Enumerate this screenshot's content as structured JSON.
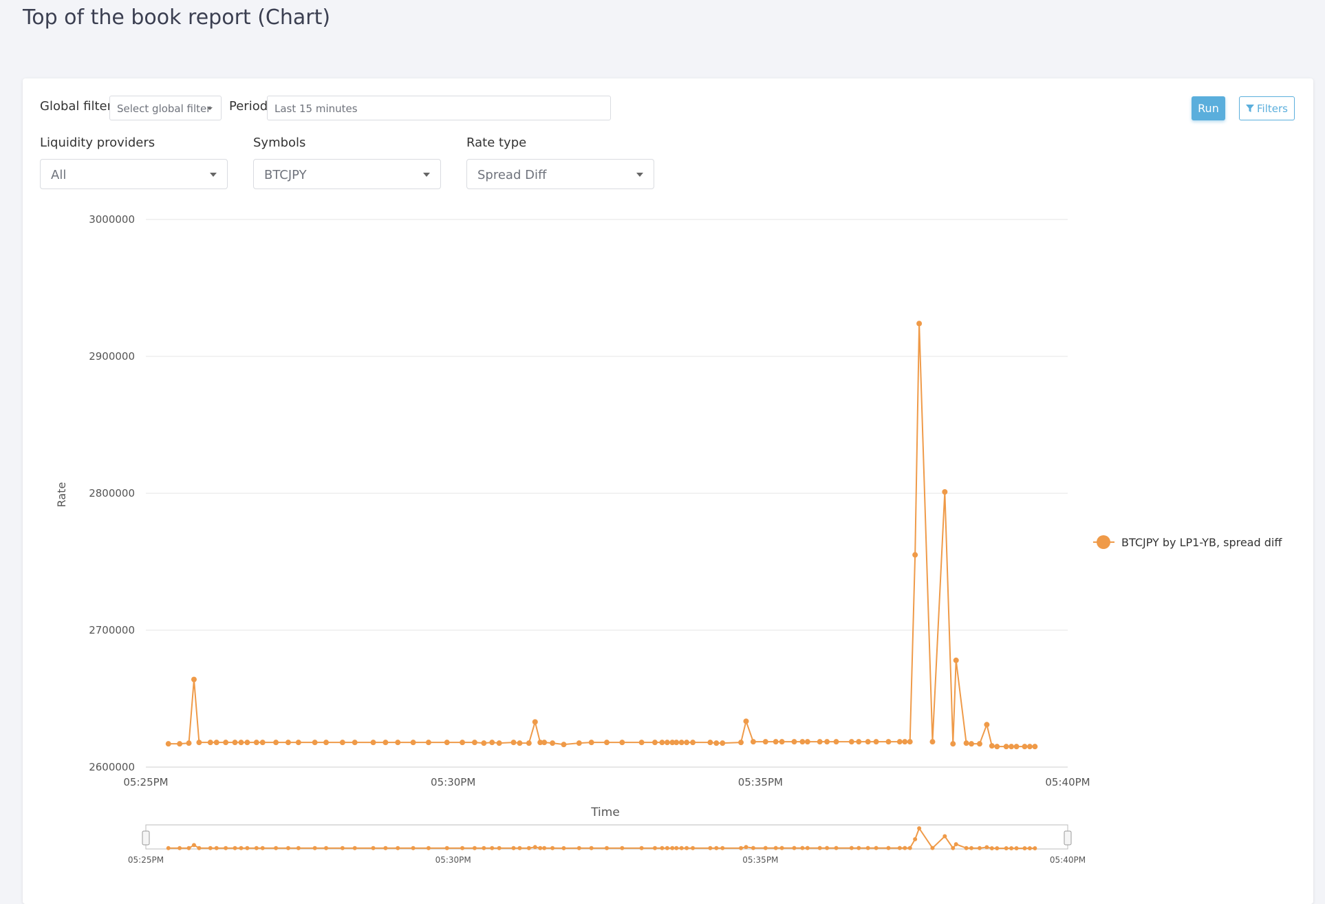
{
  "page": {
    "title": "Top of the book report (Chart)"
  },
  "filters": {
    "global_filter_label": "Global filter",
    "global_filter_placeholder": "Select global filter",
    "period_label": "Period",
    "period_value": "Last 15 minutes",
    "run_label": "Run",
    "filters_label": "Filters",
    "liquidity_label": "Liquidity providers",
    "liquidity_value": "All",
    "symbols_label": "Symbols",
    "symbols_value": "BTCJPY",
    "rate_type_label": "Rate type",
    "rate_type_value": "Spread Diff"
  },
  "colors": {
    "series": "#ef9a48",
    "accent": "#5aaedc"
  },
  "chart_data": {
    "type": "line",
    "ylabel": "Rate",
    "xlabel": "Time",
    "ylim": [
      2600000,
      3000000
    ],
    "y_ticks": [
      "3000000",
      "2900000",
      "2800000",
      "2700000",
      "2600000"
    ],
    "x_range": [
      "05:25PM",
      "05:40PM"
    ],
    "x_ticks": [
      "05:25PM",
      "05:30PM",
      "05:35PM",
      "05:40PM"
    ],
    "grid": true,
    "legend_position": "right",
    "series": [
      {
        "name": "BTCJPY by LP1-YB, spread diff",
        "x": [
          "05:25:22PM",
          "05:25:33PM",
          "05:25:42PM",
          "05:25:47PM",
          "05:25:52PM",
          "05:26:03PM",
          "05:26:09PM",
          "05:26:18PM",
          "05:26:27PM",
          "05:26:33PM",
          "05:26:39PM",
          "05:26:48PM",
          "05:26:54PM",
          "05:27:07PM",
          "05:27:19PM",
          "05:27:29PM",
          "05:27:45PM",
          "05:27:56PM",
          "05:28:12PM",
          "05:28:24PM",
          "05:28:42PM",
          "05:28:54PM",
          "05:29:06PM",
          "05:29:21PM",
          "05:29:36PM",
          "05:29:54PM",
          "05:30:09PM",
          "05:30:21PM",
          "05:30:30PM",
          "05:30:38PM",
          "05:30:45PM",
          "05:30:59PM",
          "05:31:05PM",
          "05:31:14PM",
          "05:31:20PM",
          "05:31:25PM",
          "05:31:29PM",
          "05:31:37PM",
          "05:31:48PM",
          "05:32:03PM",
          "05:32:15PM",
          "05:32:30PM",
          "05:32:45PM",
          "05:33:04PM",
          "05:33:17PM",
          "05:33:24PM",
          "05:33:29PM",
          "05:33:34PM",
          "05:33:38PM",
          "05:33:43PM",
          "05:33:48PM",
          "05:33:54PM",
          "05:34:11PM",
          "05:34:17PM",
          "05:34:23PM",
          "05:34:41PM",
          "05:34:46PM",
          "05:34:53PM",
          "05:35:05PM",
          "05:35:15PM",
          "05:35:21PM",
          "05:35:33PM",
          "05:35:41PM",
          "05:35:46PM",
          "05:35:58PM",
          "05:36:05PM",
          "05:36:14PM",
          "05:36:29PM",
          "05:36:36PM",
          "05:36:45PM",
          "05:36:53PM",
          "05:37:05PM",
          "05:37:16PM",
          "05:37:21PM",
          "05:37:26PM",
          "05:37:31PM",
          "05:37:35PM",
          "05:37:48PM",
          "05:38:00PM",
          "05:38:08PM",
          "05:38:11PM",
          "05:38:21PM",
          "05:38:26PM",
          "05:38:34PM",
          "05:38:41PM",
          "05:38:46PM",
          "05:38:51PM",
          "05:39:00PM",
          "05:39:05PM",
          "05:39:10PM",
          "05:39:18PM",
          "05:39:23PM",
          "05:39:28PM"
        ],
        "values": [
          2617000,
          2617000,
          2617500,
          2664000,
          2618000,
          2618000,
          2618000,
          2618000,
          2618000,
          2618000,
          2618000,
          2618000,
          2618000,
          2618000,
          2618000,
          2618000,
          2618000,
          2618000,
          2618000,
          2618000,
          2618000,
          2618000,
          2618000,
          2618000,
          2618000,
          2618000,
          2618000,
          2618000,
          2617500,
          2618000,
          2617500,
          2618000,
          2617500,
          2617500,
          2633000,
          2618000,
          2618000,
          2617500,
          2616500,
          2617500,
          2618000,
          2618000,
          2618000,
          2618000,
          2618000,
          2618000,
          2618000,
          2618000,
          2618000,
          2618000,
          2618000,
          2618000,
          2618000,
          2617500,
          2617500,
          2618000,
          2633500,
          2618500,
          2618500,
          2618500,
          2618500,
          2618500,
          2618500,
          2618500,
          2618500,
          2618500,
          2618500,
          2618500,
          2618500,
          2618500,
          2618500,
          2618500,
          2618500,
          2618500,
          2618500,
          2755000,
          2924000,
          2618500,
          2801000,
          2617000,
          2678000,
          2617500,
          2617000,
          2617000,
          2631000,
          2615500,
          2615000,
          2615000,
          2615000,
          2615000,
          2615000,
          2615000,
          2615000
        ]
      }
    ]
  }
}
